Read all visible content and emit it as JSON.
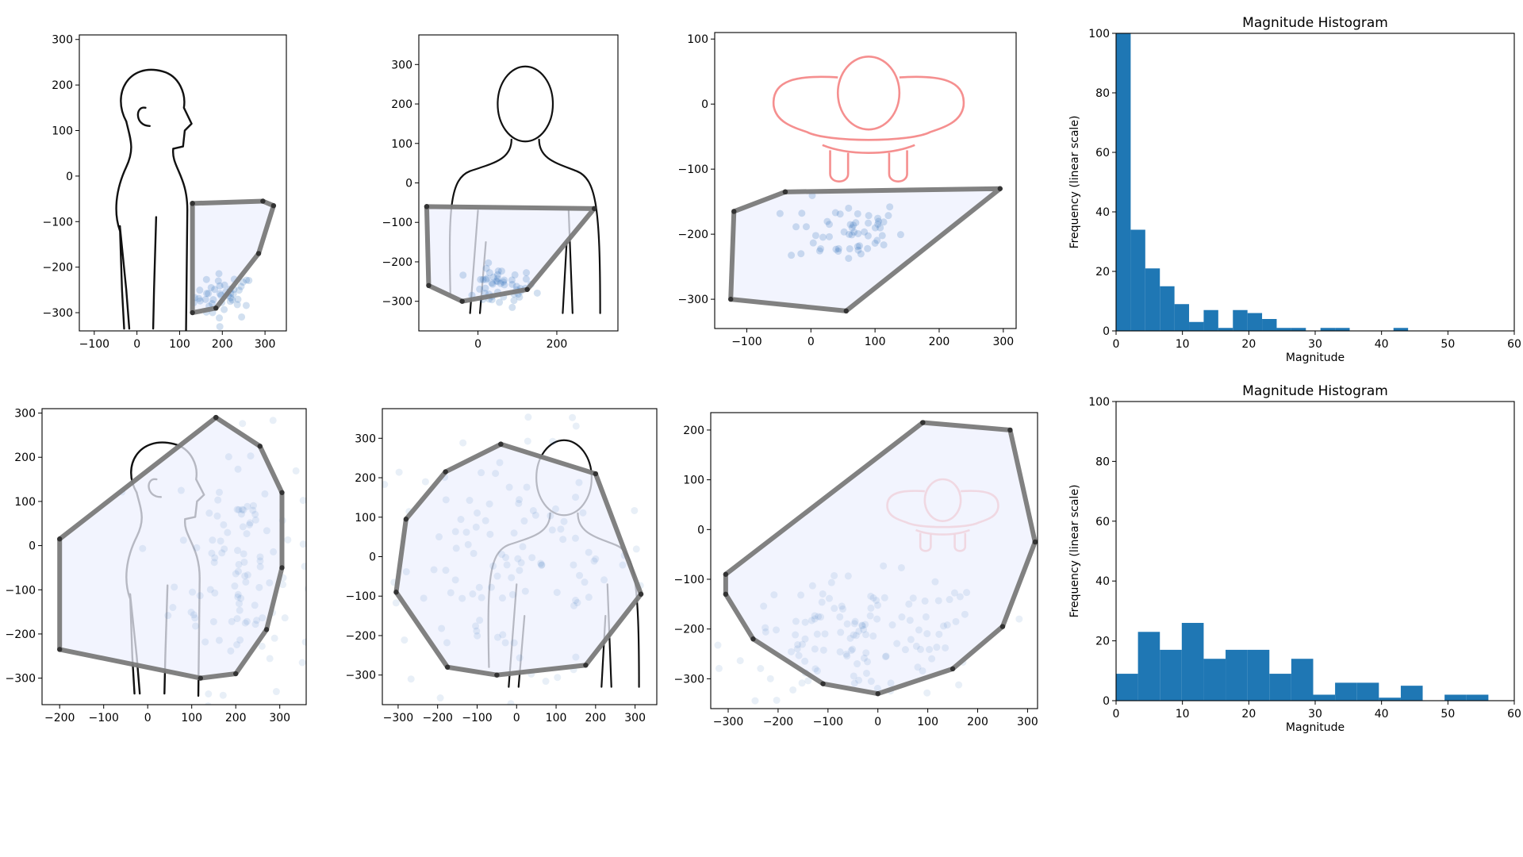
{
  "chart_data": [
    {
      "type": "scatter",
      "panel": "row1-side-view",
      "figure": "side-silhouette",
      "xlim": [
        -135,
        350
      ],
      "ylim": [
        -340,
        310
      ],
      "xticks": [
        -100,
        0,
        100,
        200,
        300
      ],
      "yticks": [
        -300,
        -200,
        -100,
        0,
        100,
        200,
        300
      ],
      "hull": [
        [
          130,
          -60
        ],
        [
          295,
          -55
        ],
        [
          320,
          -65
        ],
        [
          285,
          -170
        ],
        [
          185,
          -290
        ],
        [
          130,
          -300
        ],
        [
          130,
          -60
        ]
      ],
      "points": {
        "cluster": [
          205,
          -265
        ],
        "spread": [
          35,
          25
        ],
        "count": 45,
        "alpha": 0.2
      }
    },
    {
      "type": "scatter",
      "panel": "row1-front-view",
      "figure": "front-silhouette",
      "xlim": [
        -150,
        355
      ],
      "ylim": [
        -375,
        375
      ],
      "xticks": [
        0,
        200
      ],
      "yticks": [
        -300,
        -200,
        -100,
        0,
        100,
        200,
        300
      ],
      "hull": [
        [
          -130,
          -60
        ],
        [
          295,
          -65
        ],
        [
          125,
          -270
        ],
        [
          -40,
          -300
        ],
        [
          -125,
          -260
        ],
        [
          -130,
          -60
        ]
      ],
      "points": {
        "cluster": [
          55,
          -265
        ],
        "spread": [
          45,
          25
        ],
        "count": 50,
        "alpha": 0.2
      }
    },
    {
      "type": "scatter",
      "panel": "row1-top-view",
      "figure": "top-view-red",
      "xlim": [
        -150,
        320
      ],
      "ylim": [
        -345,
        110
      ],
      "xticks": [
        -100,
        0,
        100,
        200,
        300
      ],
      "yticks": [
        -300,
        -200,
        -100,
        0,
        100
      ],
      "hull": [
        [
          -40,
          -135
        ],
        [
          295,
          -130
        ],
        [
          55,
          -318
        ],
        [
          -125,
          -300
        ],
        [
          -120,
          -165
        ],
        [
          -40,
          -135
        ]
      ],
      "points": {
        "cluster": [
          55,
          -195
        ],
        "spread": [
          45,
          25
        ],
        "count": 55,
        "alpha": 0.2
      }
    },
    {
      "type": "bar",
      "panel": "row1-histogram",
      "title": "Magnitude Histogram",
      "xlabel": "Magnitude",
      "ylabel": "Frequency (linear scale)",
      "xlim": [
        0,
        60
      ],
      "ylim": [
        0,
        100
      ],
      "xticks": [
        0,
        10,
        20,
        30,
        40,
        50,
        60
      ],
      "yticks": [
        0,
        20,
        40,
        60,
        80,
        100
      ],
      "bin_width": 2.2,
      "values": [
        100,
        34,
        21,
        15,
        9,
        3,
        7,
        1,
        7,
        6,
        4,
        1,
        1,
        0,
        1,
        1,
        0,
        0,
        0,
        1
      ]
    },
    {
      "type": "scatter",
      "panel": "row2-side-view",
      "figure": "side-silhouette",
      "xlim": [
        -240,
        360
      ],
      "ylim": [
        -360,
        310
      ],
      "xticks": [
        -200,
        -100,
        0,
        100,
        200,
        300
      ],
      "yticks": [
        -300,
        -200,
        -100,
        0,
        100,
        200,
        300
      ],
      "hull": [
        [
          155,
          290
        ],
        [
          255,
          225
        ],
        [
          305,
          120
        ],
        [
          305,
          -50
        ],
        [
          270,
          -190
        ],
        [
          200,
          -290
        ],
        [
          120,
          -300
        ],
        [
          -200,
          -235
        ],
        [
          -200,
          15
        ],
        [
          155,
          290
        ]
      ],
      "points": {
        "cluster": [
          220,
          -40
        ],
        "spread": [
          80,
          140
        ],
        "count": 110,
        "alpha": 0.1
      }
    },
    {
      "type": "scatter",
      "panel": "row2-front-view",
      "figure": "front-silhouette",
      "xlim": [
        -340,
        355
      ],
      "ylim": [
        -375,
        375
      ],
      "xticks": [
        -300,
        -200,
        -100,
        0,
        100,
        200,
        300
      ],
      "yticks": [
        -300,
        -200,
        -100,
        0,
        100,
        200,
        300
      ],
      "hull": [
        [
          -40,
          285
        ],
        [
          200,
          210
        ],
        [
          315,
          -95
        ],
        [
          175,
          -275
        ],
        [
          -50,
          -300
        ],
        [
          -175,
          -280
        ],
        [
          -305,
          -90
        ],
        [
          -280,
          95
        ],
        [
          -180,
          215
        ],
        [
          -40,
          285
        ]
      ],
      "points": {
        "cluster": [
          -20,
          -20
        ],
        "spread": [
          180,
          160
        ],
        "count": 120,
        "alpha": 0.1
      }
    },
    {
      "type": "scatter",
      "panel": "row2-top-view",
      "figure": "top-view-red",
      "xlim": [
        -335,
        320
      ],
      "ylim": [
        -360,
        235
      ],
      "xticks": [
        -300,
        -200,
        -100,
        0,
        100,
        200,
        300
      ],
      "yticks": [
        -300,
        -200,
        -100,
        0,
        100,
        200
      ],
      "hull": [
        [
          90,
          215
        ],
        [
          265,
          200
        ],
        [
          315,
          -25
        ],
        [
          250,
          -195
        ],
        [
          150,
          -280
        ],
        [
          0,
          -330
        ],
        [
          -110,
          -310
        ],
        [
          -250,
          -220
        ],
        [
          -305,
          -130
        ],
        [
          -305,
          -90
        ],
        [
          90,
          215
        ]
      ],
      "points": {
        "cluster": [
          -30,
          -220
        ],
        "spread": [
          130,
          60
        ],
        "count": 130,
        "alpha": 0.1
      }
    },
    {
      "type": "bar",
      "panel": "row2-histogram",
      "title": "Magnitude Histogram",
      "xlabel": "Magnitude",
      "ylabel": "Frequency (linear scale)",
      "xlim": [
        0,
        60
      ],
      "ylim": [
        0,
        100
      ],
      "xticks": [
        0,
        10,
        20,
        30,
        40,
        50,
        60
      ],
      "yticks": [
        0,
        20,
        40,
        60,
        80,
        100
      ],
      "bin_width": 3.3,
      "values": [
        9,
        23,
        17,
        26,
        14,
        17,
        17,
        9,
        14,
        2,
        6,
        6,
        1,
        5,
        0,
        2,
        2,
        0
      ]
    }
  ],
  "colors": {
    "hull_fill": "#eef0fd",
    "hull_edge": "#7a7a7a",
    "hull_vertex": "#333333",
    "point": "#1f63b4",
    "bar": "#1f77b4",
    "silhouette": "#111111",
    "top_view": "#ee4444"
  }
}
